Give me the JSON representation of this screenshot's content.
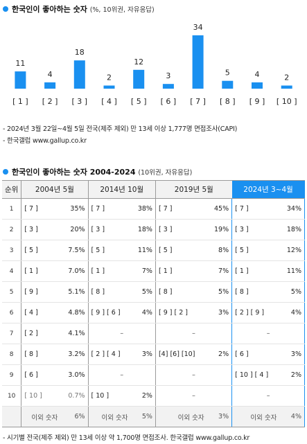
{
  "section1": {
    "title": "한국인이 좋아하는 숫자",
    "subtitle": "(%, 10위권, 자유응답)"
  },
  "chart_data": {
    "type": "bar",
    "categories": [
      "[ 1 ]",
      "[ 2 ]",
      "[ 3 ]",
      "[ 4 ]",
      "[ 5 ]",
      "[ 6 ]",
      "[ 7 ]",
      "[ 8 ]",
      "[ 9 ]",
      "[ 10 ]"
    ],
    "values": [
      11,
      4,
      18,
      2,
      12,
      3,
      34,
      5,
      4,
      2
    ],
    "ylim": [
      0,
      34
    ],
    "bar_color": "#1a90f0",
    "grid": false
  },
  "notes1": [
    "- 2024년 3월 22일~4월 5일 전국(제주 제외) 만 13세 이상 1,777명 면접조사(CAPI)",
    "- 한국갤럽 www.gallup.co.kr"
  ],
  "section2": {
    "title": "한국인이 좋아하는 숫자 2004-2024",
    "subtitle": "(10위권, 자유응답)"
  },
  "table": {
    "rank_header": "순위",
    "columns": [
      "2004년 5월",
      "2014년 10월",
      "2019년 5월",
      "2024년 3~4월"
    ],
    "highlight_color": "#1a90f0",
    "rows": [
      {
        "rank": "1",
        "cells": [
          [
            "[ 7 ]",
            "35%"
          ],
          [
            "[ 7 ]",
            "38%"
          ],
          [
            "[ 7 ]",
            "45%"
          ],
          [
            "[ 7 ]",
            "34%"
          ]
        ]
      },
      {
        "rank": "2",
        "cells": [
          [
            "[ 3 ]",
            "20%"
          ],
          [
            "[ 3 ]",
            "18%"
          ],
          [
            "[ 3 ]",
            "19%"
          ],
          [
            "[ 3 ]",
            "18%"
          ]
        ]
      },
      {
        "rank": "3",
        "cells": [
          [
            "[ 5 ]",
            "7.5%"
          ],
          [
            "[ 5 ]",
            "11%"
          ],
          [
            "[ 5 ]",
            "8%"
          ],
          [
            "[ 5 ]",
            "12%"
          ]
        ]
      },
      {
        "rank": "4",
        "cells": [
          [
            "[ 1 ]",
            "7.0%"
          ],
          [
            "[ 1 ]",
            "7%"
          ],
          [
            "[ 1 ]",
            "7%"
          ],
          [
            "[ 1 ]",
            "11%"
          ]
        ]
      },
      {
        "rank": "5",
        "cells": [
          [
            "[ 9 ]",
            "5.1%"
          ],
          [
            "[ 8 ]",
            "5%"
          ],
          [
            "[ 8 ]",
            "5%"
          ],
          [
            "[ 8 ]",
            "5%"
          ]
        ]
      },
      {
        "rank": "6",
        "cells": [
          [
            "[ 4 ]",
            "4.8%"
          ],
          [
            "[ 9 ] [ 6 ]",
            "4%"
          ],
          [
            "[ 9 ] [ 2 ]",
            "3%"
          ],
          [
            "[ 2 ] [ 9 ]",
            "4%"
          ]
        ]
      },
      {
        "rank": "7",
        "cells": [
          [
            "[ 2 ]",
            "4.1%"
          ],
          [
            "–",
            ""
          ],
          [
            "–",
            ""
          ],
          [
            "–",
            ""
          ]
        ]
      },
      {
        "rank": "8",
        "cells": [
          [
            "[ 8 ]",
            "3.2%"
          ],
          [
            "[ 2 ] [ 4 ]",
            "3%"
          ],
          [
            "[4] [6] [10]",
            "2%"
          ],
          [
            "[ 6 ]",
            "3%"
          ]
        ]
      },
      {
        "rank": "9",
        "cells": [
          [
            "[ 6 ]",
            "3.0%"
          ],
          [
            "–",
            ""
          ],
          [
            "–",
            ""
          ],
          [
            "[ 10 ] [ 4 ]",
            "2%"
          ]
        ]
      },
      {
        "rank": "10",
        "cells": [
          [
            "[ 10 ]",
            "0.7%"
          ],
          [
            "[ 10 ]",
            "2%"
          ],
          [
            "–",
            ""
          ],
          [
            "–",
            ""
          ]
        ]
      }
    ],
    "other_label": "이외 숫자",
    "other_values": [
      "6%",
      "5%",
      "3%",
      "4%"
    ]
  },
  "notes2": "- 시기별 전국(제주 제외) 만 13세 이상 약 1,700명 면접조사. 한국갤럽 www.gallup.co.kr"
}
